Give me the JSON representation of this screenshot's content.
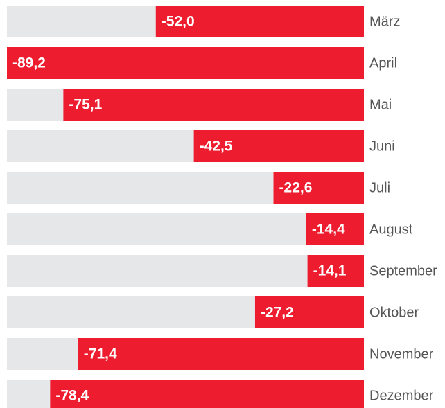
{
  "chart_data": {
    "type": "bar",
    "orientation": "horizontal",
    "categories": [
      "März",
      "April",
      "Mai",
      "Juni",
      "Juli",
      "August",
      "September",
      "Oktober",
      "November",
      "Dezember"
    ],
    "values": [
      -52.0,
      -89.2,
      -75.1,
      -42.5,
      -22.6,
      -14.4,
      -14.1,
      -27.2,
      -71.4,
      -78.4
    ],
    "value_labels": [
      "-52,0",
      "-89,2",
      "-75,1",
      "-42,5",
      "-22,6",
      "-14,4",
      "-14,1",
      "-27,2",
      "-71,4",
      "-78,4"
    ],
    "color": "#ed1c2e",
    "track_color": "#e6e7e8",
    "xlim": [
      -89.2,
      0
    ]
  }
}
